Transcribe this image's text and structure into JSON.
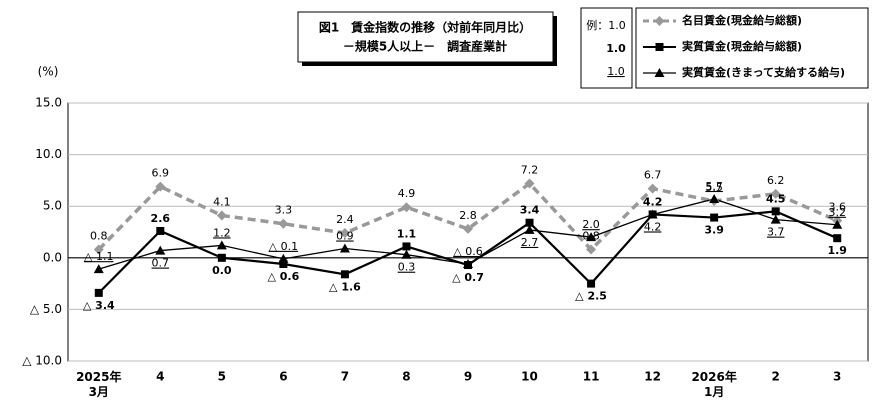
{
  "chart_data": {
    "type": "line",
    "title": "図1　賃金指数の推移（対前年同月比）",
    "subtitle": "－規模5人以上－　調査産業計",
    "y_label": "(%)",
    "legend_example": [
      "例：1.0",
      "1.0",
      "1.0"
    ],
    "categories": [
      "2025年\n3月",
      "4",
      "5",
      "6",
      "7",
      "8",
      "9",
      "10",
      "11",
      "12",
      "2026年\n1月",
      "2",
      "3"
    ],
    "ylim": [
      -10,
      15
    ],
    "yticks": [
      {
        "value": 15,
        "label": "15.0"
      },
      {
        "value": 10,
        "label": "10.0"
      },
      {
        "value": 5,
        "label": "5.0"
      },
      {
        "value": 0,
        "label": "0.0"
      },
      {
        "value": -5,
        "label": "△ 5.0"
      },
      {
        "value": -10,
        "label": "△ 10.0"
      }
    ],
    "series": [
      {
        "name": "名目賃金(現金給与総額)",
        "color": "#999999",
        "style": "dashed",
        "marker": "diamond",
        "values": [
          0.8,
          6.9,
          4.1,
          3.3,
          2.4,
          4.9,
          2.8,
          7.2,
          0.8,
          6.7,
          5.5,
          6.2,
          3.6
        ],
        "value_labels": [
          "0.8",
          "6.9",
          "4.1",
          "3.3",
          "2.4",
          "4.9",
          "2.8",
          "7.2",
          "0.8",
          "6.7",
          "5.5",
          "6.2",
          "3.6"
        ]
      },
      {
        "name": "実質賃金(現金給与総額)",
        "color": "#000000",
        "style": "solid-bold",
        "marker": "square",
        "values": [
          -3.4,
          2.6,
          0.0,
          -0.6,
          -1.6,
          1.1,
          -0.7,
          3.4,
          -2.5,
          4.2,
          3.9,
          4.5,
          1.9
        ],
        "value_labels": [
          "△ 3.4",
          "2.6",
          "0.0",
          "△ 0.6",
          "△ 1.6",
          "1.1",
          "△ 0.7",
          "3.4",
          "△ 2.5",
          "4.2",
          "3.9",
          "4.5",
          "1.9"
        ]
      },
      {
        "name": "実質賃金(きまって支給する給与)",
        "color": "#000000",
        "style": "solid",
        "marker": "triangle",
        "values": [
          -1.1,
          0.7,
          1.2,
          -0.1,
          0.9,
          0.3,
          -0.6,
          2.7,
          2.0,
          4.2,
          5.7,
          3.7,
          3.2
        ],
        "value_labels": [
          "△ 1.1",
          "0.7",
          "1.2",
          "△ 0.1",
          "0.9",
          "0.3",
          "△ 0.6",
          "2.7",
          "2.0",
          "4.2",
          "5.7",
          "3.7",
          "3.2"
        ]
      }
    ]
  }
}
